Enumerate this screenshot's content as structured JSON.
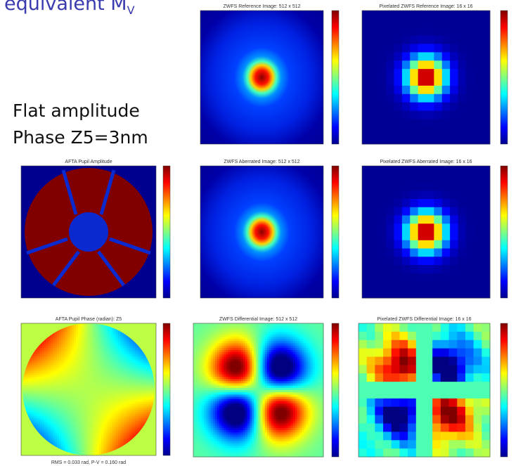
{
  "header": {
    "text": "equivalent M",
    "subscript": "V"
  },
  "notes": [
    "Flat amplitude",
    "Phase Z5=3nm"
  ],
  "panels": [
    {
      "title": "ZWFS Reference Image: 512 x 512"
    },
    {
      "title": "Pixelated ZWFS Reference Image: 16 x 16"
    },
    {
      "title": "AFTA Pupil Amplitude"
    },
    {
      "title": "ZWFS Aberrated Image: 512 x 512"
    },
    {
      "title": "Pixelated ZWFS Aberrated Image: 16 x 16"
    },
    {
      "title": "AFTA Pupil Phase (radian): Z5"
    },
    {
      "title": "ZWFS Differential Image: 512 x 512"
    },
    {
      "title": "Pixelated ZWFS Differential Image: 16 x 16"
    }
  ],
  "caption": "RMS = 0.033 rad, P-V = 0.160 rad"
}
